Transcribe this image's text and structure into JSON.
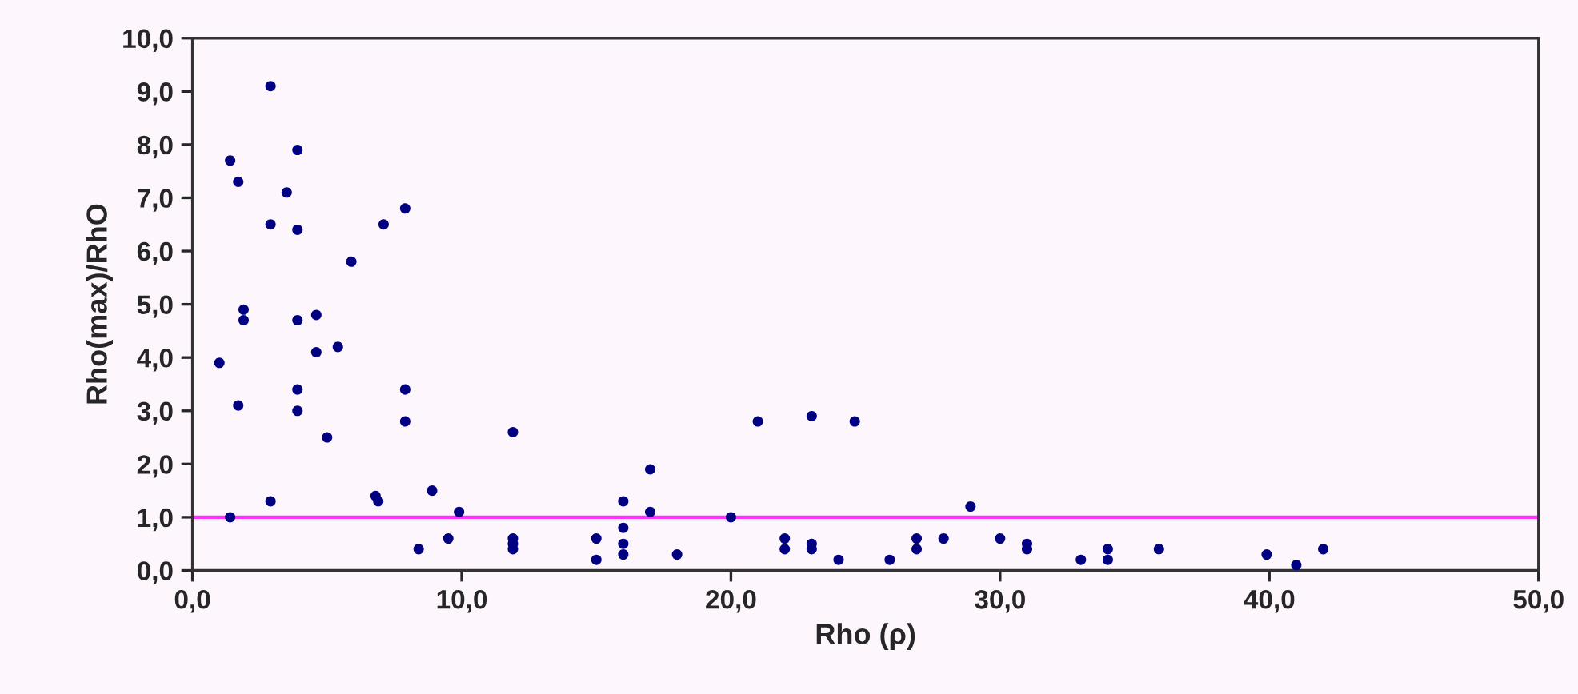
{
  "chart_data": {
    "type": "scatter",
    "xlabel": "Rho (ρ)",
    "ylabel": "Rho(max)/RhO",
    "x": [
      1.0,
      1.4,
      1.4,
      1.7,
      1.7,
      1.9,
      1.9,
      2.9,
      2.9,
      2.9,
      3.5,
      3.9,
      3.9,
      3.9,
      3.9,
      3.9,
      4.6,
      4.6,
      5.0,
      5.4,
      5.9,
      6.8,
      6.9,
      7.1,
      7.9,
      7.9,
      7.9,
      8.4,
      8.9,
      9.5,
      9.9,
      11.9,
      11.9,
      11.9,
      11.9,
      15.0,
      15.0,
      16.0,
      16.0,
      16.0,
      16.0,
      17.0,
      17.0,
      18.0,
      20.0,
      21.0,
      22.0,
      22.0,
      23.0,
      23.0,
      23.0,
      24.0,
      24.6,
      25.9,
      26.9,
      26.9,
      27.9,
      28.9,
      30.0,
      31.0,
      31.0,
      33.0,
      34.0,
      34.0,
      35.9,
      39.9,
      41.0,
      42.0
    ],
    "series": [
      {
        "color": "#000080",
        "values": [
          3.9,
          7.7,
          1.0,
          7.3,
          3.1,
          4.9,
          4.7,
          9.1,
          6.5,
          1.3,
          7.1,
          7.9,
          6.4,
          4.7,
          3.4,
          3.0,
          4.8,
          4.1,
          2.5,
          4.2,
          5.8,
          1.4,
          1.3,
          6.5,
          6.8,
          3.4,
          2.8,
          0.4,
          1.5,
          0.6,
          1.1,
          2.6,
          0.6,
          0.5,
          0.4,
          0.6,
          0.2,
          1.3,
          0.8,
          0.5,
          0.3,
          1.9,
          1.1,
          0.3,
          1.0,
          2.8,
          0.6,
          0.4,
          2.9,
          0.5,
          0.4,
          0.2,
          2.8,
          0.2,
          0.6,
          0.4,
          0.6,
          1.2,
          0.6,
          0.5,
          0.4,
          0.2,
          0.4,
          0.2,
          0.4,
          0.3,
          0.1,
          0.4
        ]
      }
    ],
    "xlim": [
      0,
      50
    ],
    "ylim": [
      0,
      10
    ],
    "xticks": [
      {
        "value": 0,
        "label": "0,0"
      },
      {
        "value": 10,
        "label": "10,0"
      },
      {
        "value": 20,
        "label": "20,0"
      },
      {
        "value": 30,
        "label": "30,0"
      },
      {
        "value": 40,
        "label": "40,0"
      },
      {
        "value": 50,
        "label": "50,0"
      }
    ],
    "yticks": [
      {
        "value": 0,
        "label": "0,0"
      },
      {
        "value": 1,
        "label": "1,0"
      },
      {
        "value": 2,
        "label": "2,0"
      },
      {
        "value": 3,
        "label": "3,0"
      },
      {
        "value": 4,
        "label": "4,0"
      },
      {
        "value": 5,
        "label": "5,0"
      },
      {
        "value": 6,
        "label": "6,0"
      },
      {
        "value": 7,
        "label": "7,0"
      },
      {
        "value": 8,
        "label": "8,0"
      },
      {
        "value": 9,
        "label": "9,0"
      },
      {
        "value": 10,
        "label": "10,0"
      }
    ],
    "ref_lines": [
      {
        "axis": "y",
        "value": 1,
        "color": "#ff33ff"
      }
    ],
    "marker": "circle",
    "grid": false,
    "legend": false
  }
}
